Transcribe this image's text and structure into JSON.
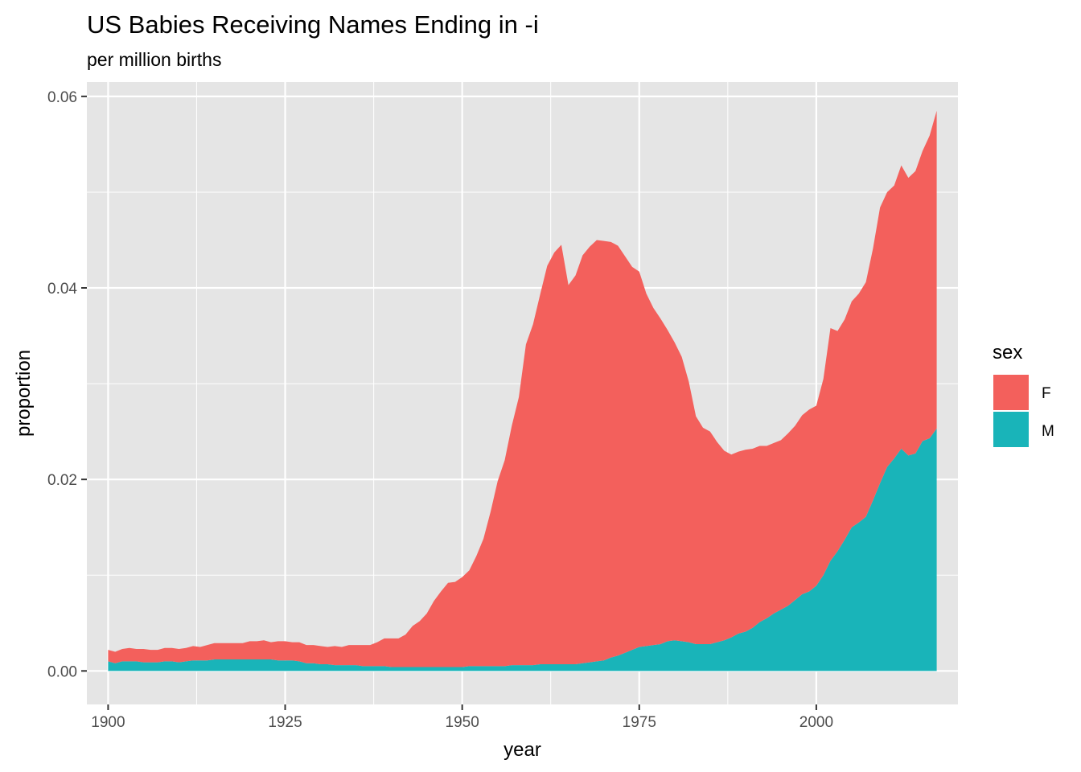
{
  "chart_data": {
    "type": "area",
    "stacked": true,
    "title": "US Babies Receiving Names Ending in -i",
    "subtitle": "per million births",
    "xlabel": "year",
    "ylabel": "proportion",
    "xlim": [
      1897,
      2020
    ],
    "ylim": [
      -0.0035,
      0.0615
    ],
    "x_ticks": [
      1900,
      1925,
      1950,
      1975,
      2000
    ],
    "x_tick_labels": [
      "1900",
      "1925",
      "1950",
      "1975",
      "2000"
    ],
    "y_ticks": [
      0,
      0.02,
      0.04,
      0.06
    ],
    "y_tick_labels": [
      "0.00",
      "0.02",
      "0.04",
      "0.06"
    ],
    "grid": true,
    "legend": {
      "title": "sex",
      "position": "right"
    },
    "x": [
      1900,
      1901,
      1902,
      1903,
      1904,
      1905,
      1906,
      1907,
      1908,
      1909,
      1910,
      1911,
      1912,
      1913,
      1914,
      1915,
      1916,
      1917,
      1918,
      1919,
      1920,
      1921,
      1922,
      1923,
      1924,
      1925,
      1926,
      1927,
      1928,
      1929,
      1930,
      1931,
      1932,
      1933,
      1934,
      1935,
      1936,
      1937,
      1938,
      1939,
      1940,
      1941,
      1942,
      1943,
      1944,
      1945,
      1946,
      1947,
      1948,
      1949,
      1950,
      1951,
      1952,
      1953,
      1954,
      1955,
      1956,
      1957,
      1958,
      1959,
      1960,
      1961,
      1962,
      1963,
      1964,
      1965,
      1966,
      1967,
      1968,
      1969,
      1970,
      1971,
      1972,
      1973,
      1974,
      1975,
      1976,
      1977,
      1978,
      1979,
      1980,
      1981,
      1982,
      1983,
      1984,
      1985,
      1986,
      1987,
      1988,
      1989,
      1990,
      1991,
      1992,
      1993,
      1994,
      1995,
      1996,
      1997,
      1998,
      1999,
      2000,
      2001,
      2002,
      2003,
      2004,
      2005,
      2006,
      2007,
      2008,
      2009,
      2010,
      2011,
      2012,
      2013,
      2014,
      2015,
      2016,
      2017
    ],
    "series": [
      {
        "name": "M",
        "color": "#19b4b9",
        "values": [
          0.001,
          0.0008,
          0.001,
          0.001,
          0.001,
          0.0009,
          0.0009,
          0.0009,
          0.001,
          0.001,
          0.0009,
          0.001,
          0.0011,
          0.0011,
          0.0011,
          0.0012,
          0.0012,
          0.0012,
          0.0012,
          0.0012,
          0.0012,
          0.0012,
          0.0012,
          0.0012,
          0.0011,
          0.0011,
          0.0011,
          0.001,
          0.0008,
          0.0008,
          0.0007,
          0.0007,
          0.0006,
          0.0006,
          0.0006,
          0.0006,
          0.0005,
          0.0005,
          0.0005,
          0.0005,
          0.0004,
          0.0004,
          0.0004,
          0.0004,
          0.0004,
          0.0004,
          0.0004,
          0.0004,
          0.0004,
          0.0004,
          0.0004,
          0.0005,
          0.0005,
          0.0005,
          0.0005,
          0.0005,
          0.0005,
          0.0006,
          0.0006,
          0.0006,
          0.0006,
          0.0007,
          0.0007,
          0.0007,
          0.0007,
          0.0007,
          0.0007,
          0.0008,
          0.0009,
          0.001,
          0.0011,
          0.0014,
          0.0016,
          0.0019,
          0.0022,
          0.0025,
          0.0026,
          0.0027,
          0.0028,
          0.0031,
          0.0032,
          0.0031,
          0.003,
          0.0028,
          0.0028,
          0.0028,
          0.003,
          0.0032,
          0.0035,
          0.0039,
          0.0041,
          0.0045,
          0.0051,
          0.0055,
          0.006,
          0.0064,
          0.0068,
          0.0074,
          0.008,
          0.0083,
          0.0089,
          0.01,
          0.0115,
          0.0125,
          0.0137,
          0.015,
          0.0155,
          0.0161,
          0.0178,
          0.0196,
          0.0213,
          0.0222,
          0.0232,
          0.0225,
          0.0227,
          0.024,
          0.0243,
          0.0253
        ]
      },
      {
        "name": "F",
        "color": "#f3605c",
        "values": [
          0.0012,
          0.0012,
          0.0013,
          0.0014,
          0.0013,
          0.0014,
          0.0013,
          0.0013,
          0.0014,
          0.0014,
          0.0014,
          0.0014,
          0.0015,
          0.0014,
          0.0016,
          0.0017,
          0.0017,
          0.0017,
          0.0017,
          0.0017,
          0.0019,
          0.0019,
          0.002,
          0.0018,
          0.002,
          0.002,
          0.0019,
          0.002,
          0.0019,
          0.0019,
          0.0019,
          0.0018,
          0.002,
          0.0019,
          0.0021,
          0.0021,
          0.0022,
          0.0022,
          0.0025,
          0.0029,
          0.003,
          0.003,
          0.0034,
          0.0043,
          0.0048,
          0.0056,
          0.0069,
          0.0079,
          0.0088,
          0.0089,
          0.0094,
          0.01,
          0.0115,
          0.0133,
          0.0161,
          0.0193,
          0.0215,
          0.025,
          0.028,
          0.0335,
          0.0356,
          0.0386,
          0.0416,
          0.043,
          0.0438,
          0.0396,
          0.0406,
          0.0426,
          0.0434,
          0.044,
          0.0438,
          0.0434,
          0.0428,
          0.0414,
          0.04,
          0.0392,
          0.0368,
          0.0352,
          0.034,
          0.0325,
          0.0311,
          0.0297,
          0.0272,
          0.0238,
          0.0226,
          0.0222,
          0.0209,
          0.0198,
          0.0191,
          0.019,
          0.019,
          0.0187,
          0.0184,
          0.018,
          0.0178,
          0.0177,
          0.018,
          0.0182,
          0.0187,
          0.019,
          0.0188,
          0.0205,
          0.0243,
          0.023,
          0.023,
          0.0236,
          0.0239,
          0.0245,
          0.0263,
          0.0288,
          0.0287,
          0.0285,
          0.0296,
          0.029,
          0.0295,
          0.0303,
          0.0316,
          0.0332
        ]
      }
    ],
    "series_colors": {
      "F": "#f3605c",
      "M": "#19b4b9"
    },
    "panel_color": "#e5e5e5",
    "grid_color": "#ffffff"
  }
}
